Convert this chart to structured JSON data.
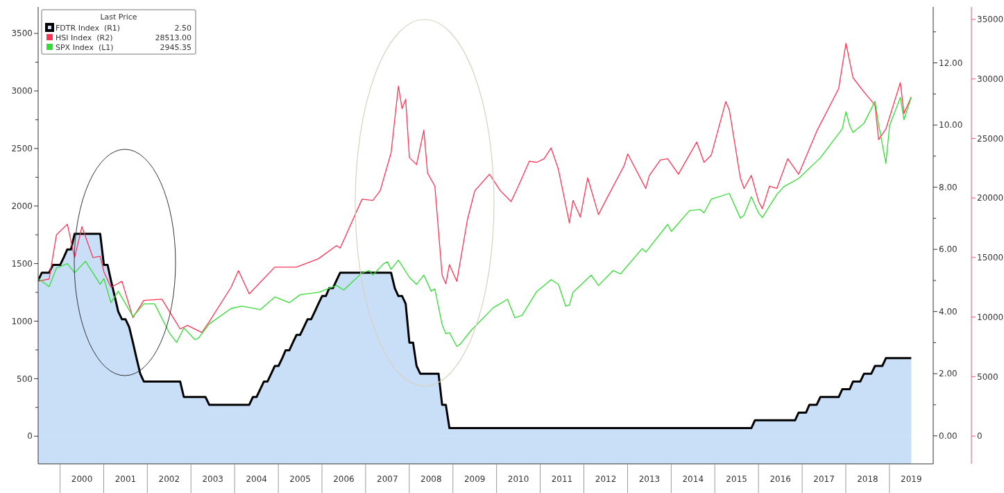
{
  "chart_data": {
    "type": "line",
    "legend_title": "Last Price",
    "annotations": [
      "2.50",
      "28513.00",
      "2945.35"
    ],
    "xlim": [
      "1999-07",
      "2020-01"
    ],
    "xticks": [
      {
        "value": "2000-07",
        "label": "2000"
      },
      {
        "value": "2001-07",
        "label": "2001"
      },
      {
        "value": "2002-07",
        "label": "2002"
      },
      {
        "value": "2003-07",
        "label": "2003"
      },
      {
        "value": "2004-07",
        "label": "2004"
      },
      {
        "value": "2005-07",
        "label": "2005"
      },
      {
        "value": "2006-07",
        "label": "2006"
      },
      {
        "value": "2007-07",
        "label": "2007"
      },
      {
        "value": "2008-07",
        "label": "2008"
      },
      {
        "value": "2009-07",
        "label": "2009"
      },
      {
        "value": "2010-07",
        "label": "2010"
      },
      {
        "value": "2011-07",
        "label": "2011"
      },
      {
        "value": "2012-07",
        "label": "2012"
      },
      {
        "value": "2013-07",
        "label": "2013"
      },
      {
        "value": "2014-07",
        "label": "2014"
      },
      {
        "value": "2015-07",
        "label": "2015"
      },
      {
        "value": "2016-07",
        "label": "2016"
      },
      {
        "value": "2017-07",
        "label": "2017"
      },
      {
        "value": "2018-07",
        "label": "2018"
      },
      {
        "value": "2019-07",
        "label": "2019"
      }
    ],
    "ylim": [
      -240,
      3730
    ],
    "yticks": [
      0,
      {
        "value": 250,
        "label": null
      },
      500,
      {
        "value": 750,
        "label": null
      },
      1000,
      {
        "value": 1250,
        "label": null
      },
      1500,
      {
        "value": 1750,
        "label": null
      },
      2000,
      {
        "value": 2250,
        "label": null
      },
      2500,
      {
        "value": 2750,
        "label": null
      },
      3000,
      {
        "value": 3250,
        "label": null
      },
      3500
    ],
    "y2lim": [
      -0.9,
      13.8
    ],
    "y2ticks": [
      {
        "value": 0,
        "label": "0.00"
      },
      {
        "value": 1,
        "label": null
      },
      {
        "value": 2,
        "label": "2.00"
      },
      {
        "value": 3,
        "label": null
      },
      {
        "value": 4,
        "label": "4.00"
      },
      {
        "value": 5,
        "label": null
      },
      {
        "value": 6,
        "label": "6.00"
      },
      {
        "value": 7,
        "label": null
      },
      {
        "value": 8,
        "label": "8.00"
      },
      {
        "value": 9,
        "label": null
      },
      {
        "value": 10,
        "label": "10.00"
      },
      {
        "value": 11,
        "label": null
      },
      {
        "value": 12,
        "label": "12.00"
      },
      {
        "value": 13,
        "label": null
      }
    ],
    "y3lim": [
      -2330,
      36050
    ],
    "y3ticks": [
      0,
      5000,
      10000,
      15000,
      20000,
      25000,
      30000,
      35000
    ],
    "legend": "top left",
    "series": [
      {
        "name": "FDTR Index  (R1)",
        "type": "area",
        "axis": "y2",
        "color": "#c8dff7",
        "x": [
          "1999-07",
          "1999-08",
          "1999-10",
          "1999-11",
          "2000-01",
          "2000-02",
          "2000-03",
          "2000-04",
          "2000-05",
          "2000-12",
          "2001-01",
          "2001-02",
          "2001-03",
          "2001-04",
          "2001-05",
          "2001-06",
          "2001-07",
          "2001-08",
          "2001-09",
          "2001-10",
          "2001-11",
          "2001-12",
          "2002-10",
          "2002-11",
          "2003-05",
          "2003-06",
          "2004-05",
          "2004-06",
          "2004-07",
          "2004-08",
          "2004-09",
          "2004-10",
          "2004-11",
          "2004-12",
          "2005-01",
          "2005-02",
          "2005-03",
          "2005-04",
          "2005-05",
          "2005-06",
          "2005-07",
          "2005-08",
          "2005-09",
          "2005-10",
          "2005-11",
          "2005-12",
          "2006-01",
          "2006-02",
          "2006-03",
          "2006-04",
          "2006-05",
          "2006-06",
          "2007-08",
          "2007-09",
          "2007-10",
          "2007-11",
          "2007-12",
          "2008-01",
          "2008-02",
          "2008-03",
          "2008-04",
          "2008-09",
          "2008-10",
          "2008-11",
          "2008-12",
          "2015-11",
          "2015-12",
          "2016-11",
          "2016-12",
          "2017-02",
          "2017-03",
          "2017-05",
          "2017-06",
          "2017-11",
          "2017-12",
          "2018-02",
          "2018-03",
          "2018-05",
          "2018-06",
          "2018-08",
          "2018-09",
          "2018-11",
          "2018-12",
          "2019-07"
        ],
        "values": [
          5.0,
          5.25,
          5.25,
          5.5,
          5.5,
          5.75,
          6.0,
          6.0,
          6.5,
          6.5,
          5.5,
          5.5,
          5.0,
          4.5,
          4.0,
          3.75,
          3.75,
          3.5,
          3.0,
          2.5,
          2.0,
          1.75,
          1.75,
          1.25,
          1.25,
          1.0,
          1.0,
          1.25,
          1.25,
          1.5,
          1.75,
          1.75,
          2.0,
          2.25,
          2.25,
          2.5,
          2.75,
          2.75,
          3.0,
          3.25,
          3.25,
          3.5,
          3.75,
          3.75,
          4.0,
          4.25,
          4.5,
          4.5,
          4.75,
          4.75,
          5.0,
          5.25,
          5.25,
          4.75,
          4.5,
          4.5,
          4.25,
          3.0,
          3.0,
          2.25,
          2.0,
          2.0,
          1.0,
          1.0,
          0.25,
          0.25,
          0.5,
          0.5,
          0.75,
          0.75,
          1.0,
          1.0,
          1.25,
          1.25,
          1.5,
          1.5,
          1.75,
          1.75,
          2.0,
          2.0,
          2.25,
          2.25,
          2.5,
          2.5
        ]
      },
      {
        "name": "HSI Index  (R2)",
        "axis": "y3",
        "color": "#ff3355",
        "x": [
          "1999-07",
          "1999-10",
          "1999-12",
          "2000-03",
          "2000-05",
          "2000-07",
          "2000-10",
          "2000-12",
          "2001-01",
          "2001-03",
          "2001-06",
          "2001-09",
          "2001-12",
          "2002-05",
          "2002-10",
          "2002-12",
          "2003-04",
          "2003-06",
          "2003-12",
          "2004-02",
          "2004-05",
          "2004-12",
          "2005-06",
          "2005-12",
          "2006-05",
          "2006-06",
          "2006-12",
          "2007-03",
          "2007-05",
          "2007-08",
          "2007-10",
          "2007-11",
          "2007-12",
          "2008-01",
          "2008-03",
          "2008-05",
          "2008-06",
          "2008-08",
          "2008-10",
          "2008-11",
          "2008-12",
          "2009-02",
          "2009-05",
          "2009-07",
          "2009-11",
          "2010-02",
          "2010-05",
          "2010-07",
          "2010-10",
          "2010-12",
          "2011-02",
          "2011-04",
          "2011-06",
          "2011-09",
          "2011-10",
          "2011-12",
          "2012-02",
          "2012-05",
          "2012-07",
          "2012-12",
          "2013-01",
          "2013-06",
          "2013-07",
          "2013-10",
          "2013-12",
          "2014-03",
          "2014-08",
          "2014-10",
          "2014-12",
          "2015-04",
          "2015-05",
          "2015-08",
          "2015-09",
          "2015-11",
          "2016-01",
          "2016-02",
          "2016-04",
          "2016-06",
          "2016-09",
          "2016-12",
          "2017-05",
          "2017-11",
          "2018-01",
          "2018-03",
          "2018-06",
          "2018-09",
          "2018-10",
          "2018-12",
          "2019-04",
          "2019-05",
          "2019-07"
        ],
        "values": [
          13000,
          13200,
          16900,
          17800,
          15000,
          17600,
          15000,
          15100,
          13800,
          12500,
          13000,
          9950,
          11400,
          11500,
          9000,
          9300,
          8700,
          9600,
          12500,
          13900,
          11950,
          14200,
          14200,
          14900,
          16000,
          15800,
          19900,
          19800,
          20600,
          23800,
          29400,
          27500,
          28300,
          23400,
          22800,
          25700,
          22100,
          21000,
          13500,
          12800,
          14400,
          13000,
          18200,
          20600,
          22000,
          20600,
          19700,
          21000,
          23100,
          23000,
          23300,
          24200,
          22400,
          17900,
          19800,
          18400,
          21700,
          18600,
          19800,
          22700,
          23700,
          20800,
          21900,
          23200,
          23300,
          22000,
          24700,
          23000,
          23600,
          28100,
          27400,
          21700,
          20800,
          21900,
          19700,
          19100,
          21000,
          20800,
          23300,
          22000,
          25600,
          29200,
          33000,
          30100,
          28900,
          27800,
          24900,
          25800,
          29700,
          27100,
          28500
        ]
      },
      {
        "name": "SPX Index  (L1)",
        "axis": "y",
        "color": "#33dd33",
        "x": [
          "1999-07",
          "1999-10",
          "1999-12",
          "2000-03",
          "2000-05",
          "2000-08",
          "2000-10",
          "2000-12",
          "2001-01",
          "2001-03",
          "2001-05",
          "2001-09",
          "2001-12",
          "2002-03",
          "2002-07",
          "2002-09",
          "2002-11",
          "2003-02",
          "2003-03",
          "2003-06",
          "2003-12",
          "2004-03",
          "2004-08",
          "2004-12",
          "2005-04",
          "2005-07",
          "2005-12",
          "2006-05",
          "2006-07",
          "2006-12",
          "2007-02",
          "2007-03",
          "2007-06",
          "2007-07",
          "2007-08",
          "2007-10",
          "2008-01",
          "2008-03",
          "2008-05",
          "2008-07",
          "2008-08",
          "2008-10",
          "2008-11",
          "2008-12",
          "2009-02",
          "2009-03",
          "2009-06",
          "2009-12",
          "2010-04",
          "2010-06",
          "2010-08",
          "2010-12",
          "2011-04",
          "2011-06",
          "2011-08",
          "2011-09",
          "2011-10",
          "2012-03",
          "2012-05",
          "2012-09",
          "2012-11",
          "2013-05",
          "2013-06",
          "2013-12",
          "2014-01",
          "2014-06",
          "2014-09",
          "2014-10",
          "2014-12",
          "2015-05",
          "2015-08",
          "2015-09",
          "2015-11",
          "2016-01",
          "2016-02",
          "2016-06",
          "2016-08",
          "2016-12",
          "2017-06",
          "2017-12",
          "2018-01",
          "2018-02",
          "2018-03",
          "2018-06",
          "2018-09",
          "2018-10",
          "2018-12",
          "2019-01",
          "2019-04",
          "2019-05",
          "2019-07"
        ],
        "values": [
          1370,
          1300,
          1460,
          1500,
          1420,
          1520,
          1420,
          1320,
          1370,
          1160,
          1260,
          1040,
          1150,
          1150,
          900,
          815,
          940,
          840,
          850,
          975,
          1110,
          1130,
          1100,
          1210,
          1160,
          1230,
          1250,
          1310,
          1270,
          1420,
          1440,
          1400,
          1500,
          1515,
          1450,
          1530,
          1380,
          1320,
          1400,
          1260,
          1280,
          970,
          890,
          900,
          780,
          800,
          920,
          1115,
          1190,
          1030,
          1050,
          1257,
          1360,
          1320,
          1130,
          1140,
          1250,
          1400,
          1310,
          1440,
          1410,
          1630,
          1600,
          1840,
          1780,
          1960,
          1970,
          1940,
          2060,
          2110,
          1895,
          1920,
          2080,
          1940,
          1900,
          2100,
          2170,
          2240,
          2420,
          2670,
          2820,
          2700,
          2640,
          2720,
          2910,
          2710,
          2370,
          2700,
          2945,
          2750,
          2945
        ]
      }
    ]
  }
}
